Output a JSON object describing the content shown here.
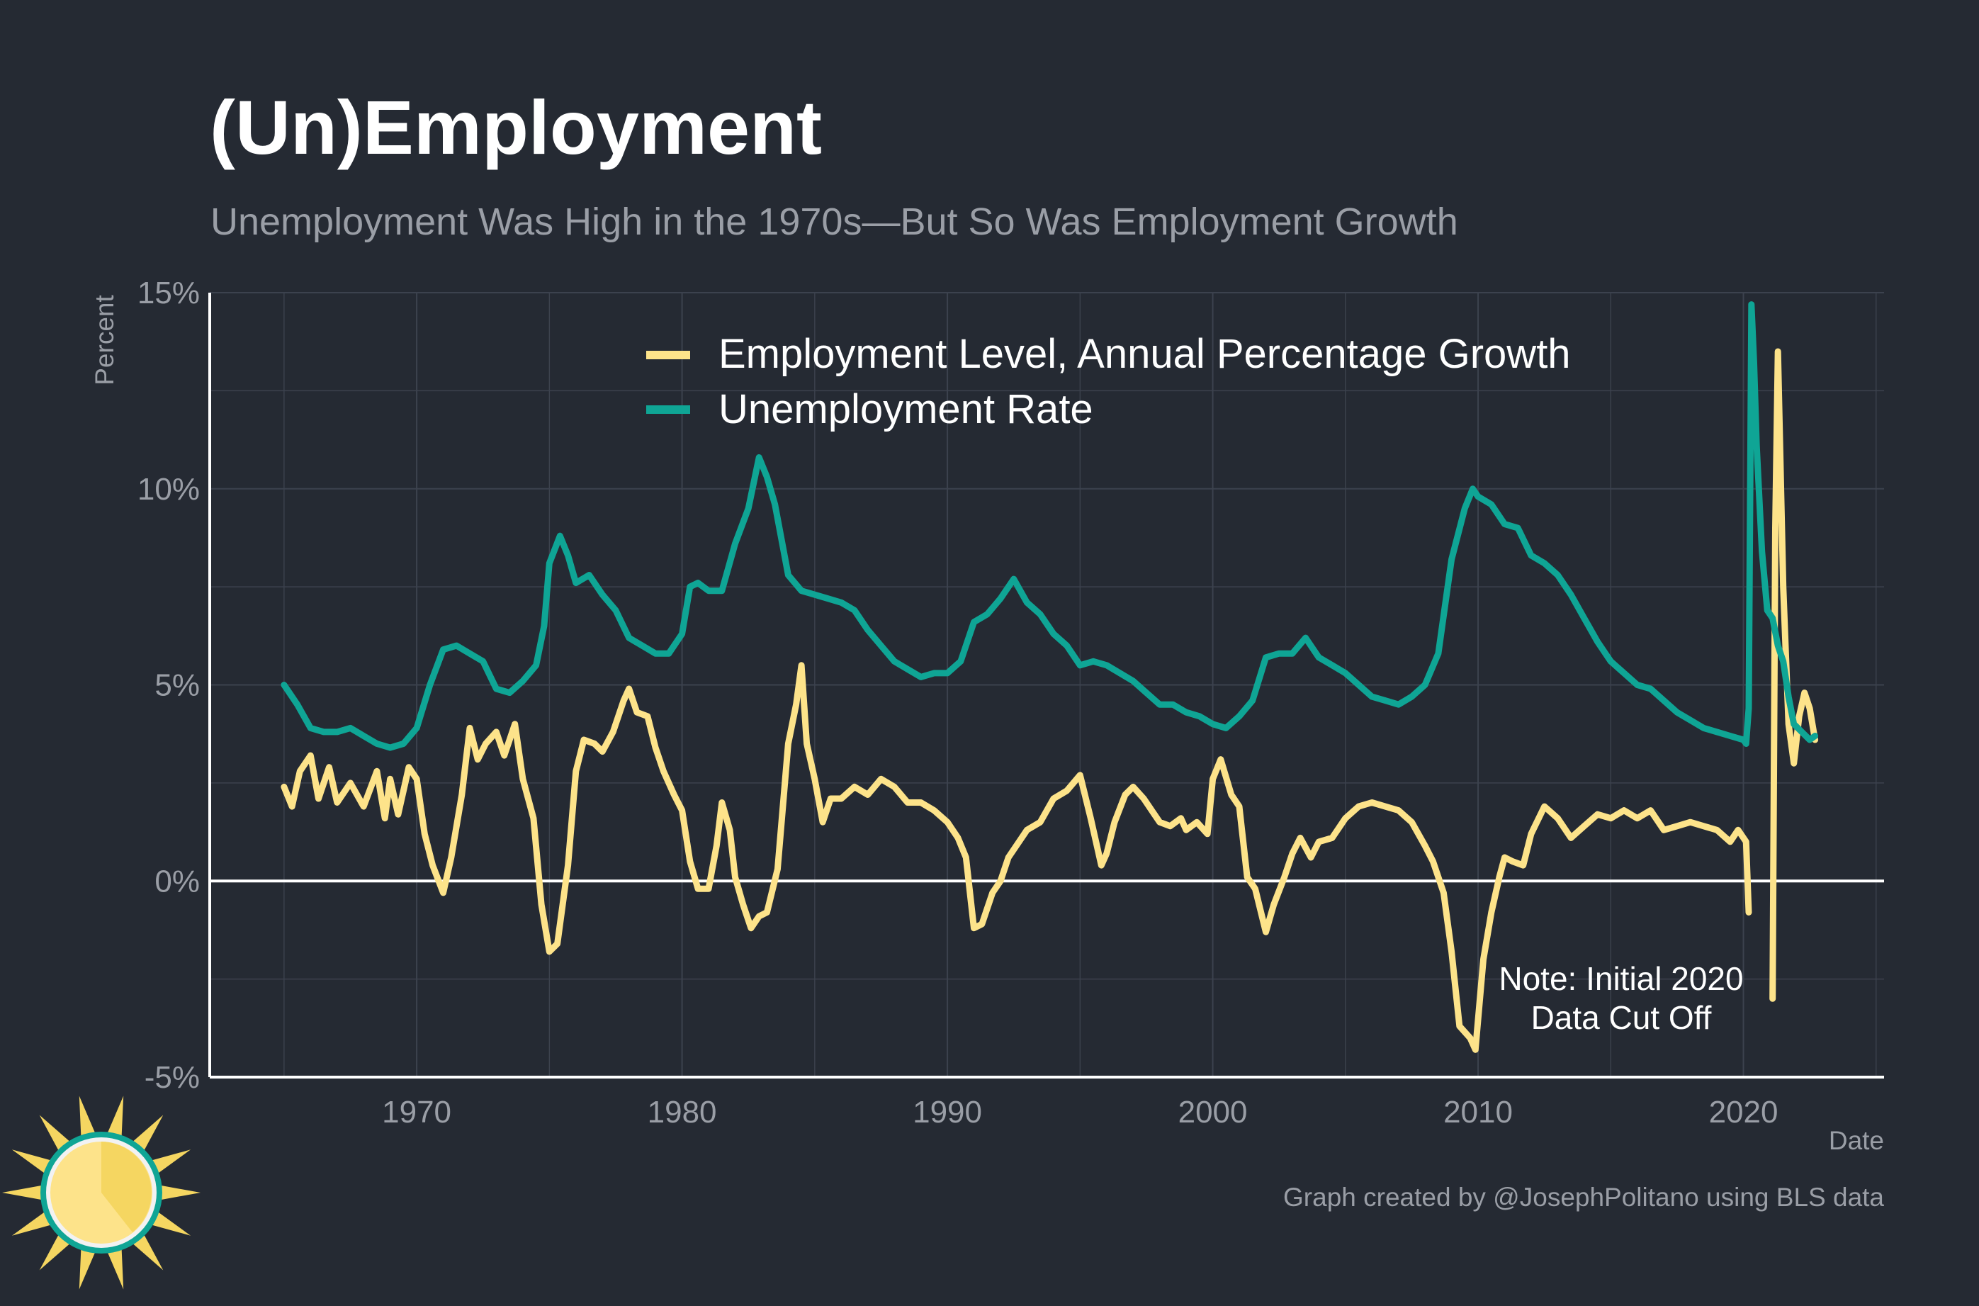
{
  "chart_data": {
    "type": "line",
    "title": "(Un)Employment",
    "subtitle": "Unemployment Was High in the 1970s—But So Was Employment Growth",
    "ylabel": "Percent",
    "xlabel": "Date",
    "caption": "Graph created by @JosephPolitano using BLS data",
    "annotation": [
      "Note: Initial 2020",
      "Data Cut Off"
    ],
    "legend_position": "top-center",
    "grid": true,
    "xlim": [
      1962.2,
      2025.3
    ],
    "ylim": [
      -5,
      15
    ],
    "x_ticks": [
      1970,
      1980,
      1990,
      2000,
      2010,
      2020
    ],
    "x_tick_labels": [
      "1970",
      "1980",
      "1990",
      "2000",
      "2010",
      "2020"
    ],
    "y_ticks": [
      -5,
      0,
      5,
      10,
      15
    ],
    "y_tick_labels": [
      "-5%",
      "0%",
      "5%",
      "10%",
      "15%"
    ],
    "zero_line": 0,
    "colors": {
      "background": "#252a33",
      "grid": "#3c424e",
      "text": "#9a9ea6",
      "employment": "#fde38a",
      "unemployment": "#0fa595",
      "white": "#ffffff"
    },
    "series": [
      {
        "name": "Employment Level, Annual Percentage Growth",
        "color": "#fde38a",
        "points": [
          [
            1965.0,
            2.4
          ],
          [
            1965.3,
            1.9
          ],
          [
            1965.6,
            2.8
          ],
          [
            1966.0,
            3.2
          ],
          [
            1966.3,
            2.1
          ],
          [
            1966.7,
            2.9
          ],
          [
            1967.0,
            2.0
          ],
          [
            1967.5,
            2.5
          ],
          [
            1968.0,
            1.9
          ],
          [
            1968.5,
            2.8
          ],
          [
            1968.8,
            1.6
          ],
          [
            1969.0,
            2.6
          ],
          [
            1969.3,
            1.7
          ],
          [
            1969.7,
            2.9
          ],
          [
            1970.0,
            2.6
          ],
          [
            1970.3,
            1.2
          ],
          [
            1970.6,
            0.4
          ],
          [
            1971.0,
            -0.3
          ],
          [
            1971.3,
            0.6
          ],
          [
            1971.7,
            2.2
          ],
          [
            1972.0,
            3.9
          ],
          [
            1972.3,
            3.1
          ],
          [
            1972.6,
            3.5
          ],
          [
            1973.0,
            3.8
          ],
          [
            1973.3,
            3.2
          ],
          [
            1973.7,
            4.0
          ],
          [
            1974.0,
            2.6
          ],
          [
            1974.4,
            1.6
          ],
          [
            1974.7,
            -0.6
          ],
          [
            1975.0,
            -1.8
          ],
          [
            1975.3,
            -1.6
          ],
          [
            1975.7,
            0.4
          ],
          [
            1976.0,
            2.8
          ],
          [
            1976.3,
            3.6
          ],
          [
            1976.7,
            3.5
          ],
          [
            1977.0,
            3.3
          ],
          [
            1977.4,
            3.8
          ],
          [
            1977.8,
            4.6
          ],
          [
            1978.0,
            4.9
          ],
          [
            1978.3,
            4.3
          ],
          [
            1978.7,
            4.2
          ],
          [
            1979.0,
            3.4
          ],
          [
            1979.3,
            2.8
          ],
          [
            1979.7,
            2.2
          ],
          [
            1980.0,
            1.8
          ],
          [
            1980.3,
            0.5
          ],
          [
            1980.6,
            -0.2
          ],
          [
            1981.0,
            -0.2
          ],
          [
            1981.3,
            0.9
          ],
          [
            1981.5,
            2.0
          ],
          [
            1981.8,
            1.3
          ],
          [
            1982.0,
            0.1
          ],
          [
            1982.3,
            -0.6
          ],
          [
            1982.6,
            -1.2
          ],
          [
            1982.9,
            -0.9
          ],
          [
            1983.2,
            -0.8
          ],
          [
            1983.6,
            0.3
          ],
          [
            1984.0,
            3.5
          ],
          [
            1984.3,
            4.5
          ],
          [
            1984.5,
            5.5
          ],
          [
            1984.7,
            3.5
          ],
          [
            1985.0,
            2.6
          ],
          [
            1985.3,
            1.5
          ],
          [
            1985.6,
            2.1
          ],
          [
            1986.0,
            2.1
          ],
          [
            1986.5,
            2.4
          ],
          [
            1987.0,
            2.2
          ],
          [
            1987.5,
            2.6
          ],
          [
            1988.0,
            2.4
          ],
          [
            1988.5,
            2.0
          ],
          [
            1989.0,
            2.0
          ],
          [
            1989.5,
            1.8
          ],
          [
            1990.0,
            1.5
          ],
          [
            1990.4,
            1.1
          ],
          [
            1990.7,
            0.6
          ],
          [
            1991.0,
            -1.2
          ],
          [
            1991.3,
            -1.1
          ],
          [
            1991.7,
            -0.3
          ],
          [
            1992.0,
            0.0
          ],
          [
            1992.3,
            0.6
          ],
          [
            1992.7,
            1.0
          ],
          [
            1993.0,
            1.3
          ],
          [
            1993.5,
            1.5
          ],
          [
            1994.0,
            2.1
          ],
          [
            1994.5,
            2.3
          ],
          [
            1995.0,
            2.7
          ],
          [
            1995.4,
            1.6
          ],
          [
            1995.8,
            0.4
          ],
          [
            1996.0,
            0.7
          ],
          [
            1996.3,
            1.5
          ],
          [
            1996.7,
            2.2
          ],
          [
            1997.0,
            2.4
          ],
          [
            1997.4,
            2.1
          ],
          [
            1997.8,
            1.7
          ],
          [
            1998.0,
            1.5
          ],
          [
            1998.4,
            1.4
          ],
          [
            1998.8,
            1.6
          ],
          [
            1999.0,
            1.3
          ],
          [
            1999.4,
            1.5
          ],
          [
            1999.8,
            1.2
          ],
          [
            2000.0,
            2.6
          ],
          [
            2000.3,
            3.1
          ],
          [
            2000.7,
            2.2
          ],
          [
            2001.0,
            1.9
          ],
          [
            2001.3,
            0.1
          ],
          [
            2001.6,
            -0.2
          ],
          [
            2002.0,
            -1.3
          ],
          [
            2002.3,
            -0.6
          ],
          [
            2002.7,
            0.1
          ],
          [
            2003.0,
            0.7
          ],
          [
            2003.3,
            1.1
          ],
          [
            2003.7,
            0.6
          ],
          [
            2004.0,
            1.0
          ],
          [
            2004.5,
            1.1
          ],
          [
            2005.0,
            1.6
          ],
          [
            2005.5,
            1.9
          ],
          [
            2006.0,
            2.0
          ],
          [
            2006.5,
            1.9
          ],
          [
            2007.0,
            1.8
          ],
          [
            2007.5,
            1.5
          ],
          [
            2008.0,
            0.9
          ],
          [
            2008.3,
            0.5
          ],
          [
            2008.7,
            -0.3
          ],
          [
            2009.0,
            -1.8
          ],
          [
            2009.3,
            -3.7
          ],
          [
            2009.7,
            -4.0
          ],
          [
            2009.9,
            -4.3
          ],
          [
            2010.2,
            -2.0
          ],
          [
            2010.5,
            -0.8
          ],
          [
            2010.8,
            0.1
          ],
          [
            2011.0,
            0.6
          ],
          [
            2011.3,
            0.5
          ],
          [
            2011.7,
            0.4
          ],
          [
            2012.0,
            1.2
          ],
          [
            2012.5,
            1.9
          ],
          [
            2013.0,
            1.6
          ],
          [
            2013.5,
            1.1
          ],
          [
            2014.0,
            1.4
          ],
          [
            2014.5,
            1.7
          ],
          [
            2015.0,
            1.6
          ],
          [
            2015.5,
            1.8
          ],
          [
            2016.0,
            1.6
          ],
          [
            2016.5,
            1.8
          ],
          [
            2017.0,
            1.3
          ],
          [
            2017.5,
            1.4
          ],
          [
            2018.0,
            1.5
          ],
          [
            2018.5,
            1.4
          ],
          [
            2019.0,
            1.3
          ],
          [
            2019.5,
            1.0
          ],
          [
            2019.8,
            1.3
          ],
          [
            2020.1,
            1.0
          ],
          [
            2020.2,
            -0.8
          ],
          [
            2020.3,
            null
          ],
          [
            2021.1,
            -3.0
          ],
          [
            2021.2,
            9.0
          ],
          [
            2021.3,
            13.5
          ],
          [
            2021.5,
            7.5
          ],
          [
            2021.7,
            4.0
          ],
          [
            2021.9,
            3.0
          ],
          [
            2022.1,
            4.2
          ],
          [
            2022.3,
            4.8
          ],
          [
            2022.5,
            4.4
          ],
          [
            2022.7,
            3.6
          ]
        ]
      },
      {
        "name": "Unemployment Rate",
        "color": "#0fa595",
        "points": [
          [
            1965.0,
            5.0
          ],
          [
            1965.5,
            4.5
          ],
          [
            1966.0,
            3.9
          ],
          [
            1966.5,
            3.8
          ],
          [
            1967.0,
            3.8
          ],
          [
            1967.5,
            3.9
          ],
          [
            1968.0,
            3.7
          ],
          [
            1968.5,
            3.5
          ],
          [
            1969.0,
            3.4
          ],
          [
            1969.5,
            3.5
          ],
          [
            1970.0,
            3.9
          ],
          [
            1970.5,
            5.0
          ],
          [
            1971.0,
            5.9
          ],
          [
            1971.5,
            6.0
          ],
          [
            1972.0,
            5.8
          ],
          [
            1972.5,
            5.6
          ],
          [
            1973.0,
            4.9
          ],
          [
            1973.5,
            4.8
          ],
          [
            1974.0,
            5.1
          ],
          [
            1974.5,
            5.5
          ],
          [
            1974.8,
            6.5
          ],
          [
            1975.0,
            8.1
          ],
          [
            1975.4,
            8.8
          ],
          [
            1975.7,
            8.3
          ],
          [
            1976.0,
            7.6
          ],
          [
            1976.5,
            7.8
          ],
          [
            1977.0,
            7.3
          ],
          [
            1977.5,
            6.9
          ],
          [
            1978.0,
            6.2
          ],
          [
            1978.5,
            6.0
          ],
          [
            1979.0,
            5.8
          ],
          [
            1979.5,
            5.8
          ],
          [
            1980.0,
            6.3
          ],
          [
            1980.3,
            7.5
          ],
          [
            1980.6,
            7.6
          ],
          [
            1981.0,
            7.4
          ],
          [
            1981.5,
            7.4
          ],
          [
            1982.0,
            8.6
          ],
          [
            1982.5,
            9.5
          ],
          [
            1982.9,
            10.8
          ],
          [
            1983.2,
            10.3
          ],
          [
            1983.5,
            9.6
          ],
          [
            1984.0,
            7.8
          ],
          [
            1984.5,
            7.4
          ],
          [
            1985.0,
            7.3
          ],
          [
            1985.5,
            7.2
          ],
          [
            1986.0,
            7.1
          ],
          [
            1986.5,
            6.9
          ],
          [
            1987.0,
            6.4
          ],
          [
            1987.5,
            6.0
          ],
          [
            1988.0,
            5.6
          ],
          [
            1988.5,
            5.4
          ],
          [
            1989.0,
            5.2
          ],
          [
            1989.5,
            5.3
          ],
          [
            1990.0,
            5.3
          ],
          [
            1990.5,
            5.6
          ],
          [
            1991.0,
            6.6
          ],
          [
            1991.5,
            6.8
          ],
          [
            1992.0,
            7.2
          ],
          [
            1992.5,
            7.7
          ],
          [
            1993.0,
            7.1
          ],
          [
            1993.5,
            6.8
          ],
          [
            1994.0,
            6.3
          ],
          [
            1994.5,
            6.0
          ],
          [
            1995.0,
            5.5
          ],
          [
            1995.5,
            5.6
          ],
          [
            1996.0,
            5.5
          ],
          [
            1996.5,
            5.3
          ],
          [
            1997.0,
            5.1
          ],
          [
            1997.5,
            4.8
          ],
          [
            1998.0,
            4.5
          ],
          [
            1998.5,
            4.5
          ],
          [
            1999.0,
            4.3
          ],
          [
            1999.5,
            4.2
          ],
          [
            2000.0,
            4.0
          ],
          [
            2000.5,
            3.9
          ],
          [
            2001.0,
            4.2
          ],
          [
            2001.5,
            4.6
          ],
          [
            2002.0,
            5.7
          ],
          [
            2002.5,
            5.8
          ],
          [
            2003.0,
            5.8
          ],
          [
            2003.5,
            6.2
          ],
          [
            2004.0,
            5.7
          ],
          [
            2004.5,
            5.5
          ],
          [
            2005.0,
            5.3
          ],
          [
            2005.5,
            5.0
          ],
          [
            2006.0,
            4.7
          ],
          [
            2006.5,
            4.6
          ],
          [
            2007.0,
            4.5
          ],
          [
            2007.5,
            4.7
          ],
          [
            2008.0,
            5.0
          ],
          [
            2008.5,
            5.8
          ],
          [
            2009.0,
            8.2
          ],
          [
            2009.5,
            9.5
          ],
          [
            2009.8,
            10.0
          ],
          [
            2010.0,
            9.8
          ],
          [
            2010.5,
            9.6
          ],
          [
            2011.0,
            9.1
          ],
          [
            2011.5,
            9.0
          ],
          [
            2012.0,
            8.3
          ],
          [
            2012.5,
            8.1
          ],
          [
            2013.0,
            7.8
          ],
          [
            2013.5,
            7.3
          ],
          [
            2014.0,
            6.7
          ],
          [
            2014.5,
            6.1
          ],
          [
            2015.0,
            5.6
          ],
          [
            2015.5,
            5.3
          ],
          [
            2016.0,
            5.0
          ],
          [
            2016.5,
            4.9
          ],
          [
            2017.0,
            4.6
          ],
          [
            2017.5,
            4.3
          ],
          [
            2018.0,
            4.1
          ],
          [
            2018.5,
            3.9
          ],
          [
            2019.0,
            3.8
          ],
          [
            2019.5,
            3.7
          ],
          [
            2020.0,
            3.6
          ],
          [
            2020.1,
            3.5
          ],
          [
            2020.2,
            4.4
          ],
          [
            2020.3,
            14.7
          ],
          [
            2020.4,
            13.2
          ],
          [
            2020.5,
            11.1
          ],
          [
            2020.7,
            8.4
          ],
          [
            2020.9,
            6.9
          ],
          [
            2021.1,
            6.7
          ],
          [
            2021.3,
            6.0
          ],
          [
            2021.5,
            5.6
          ],
          [
            2021.7,
            4.7
          ],
          [
            2021.9,
            4.0
          ],
          [
            2022.2,
            3.8
          ],
          [
            2022.5,
            3.6
          ],
          [
            2022.7,
            3.7
          ]
        ]
      }
    ]
  },
  "logo": {
    "name": "sun-logo"
  }
}
